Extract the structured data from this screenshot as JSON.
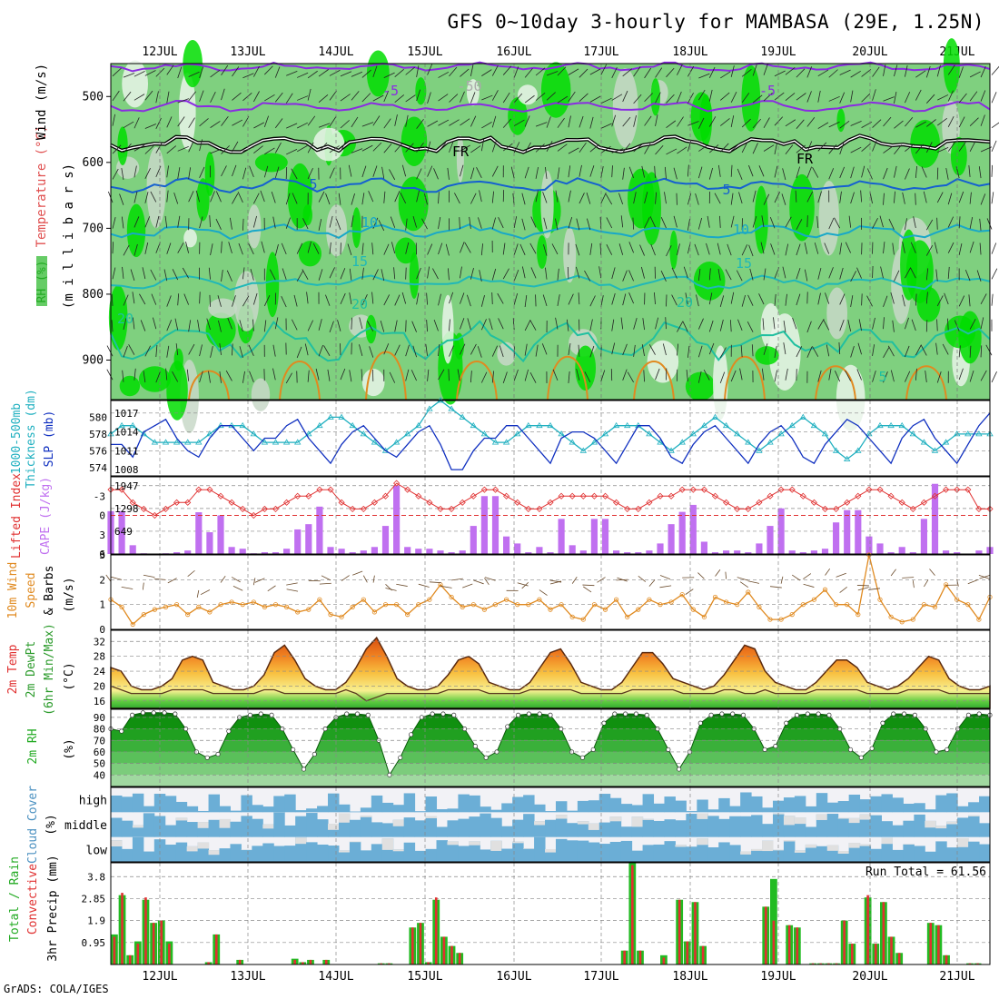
{
  "title": "GFS 0~10day 3-hourly for MAMBASA (29E, 1.25N)",
  "credit": "GrADS: COLA/IGES",
  "dates": [
    "12JUL",
    "13JUL",
    "14JUL",
    "15JUL",
    "16JUL",
    "17JUL",
    "18JUL",
    "19JUL",
    "20JUL",
    "21JUL"
  ],
  "colors": {
    "green_dark": "#00dd00",
    "green_mid": "#66cc66",
    "green_light": "#c8d8c8",
    "temp_purple": "#8a2be2",
    "temp_blue": "#1560d0",
    "temp_cyan": "#18a8c8",
    "freeze": "#000000",
    "warm_orange": "#e08a20",
    "slp": "#1030c0",
    "thick": "#20b0c0",
    "li": "#e03030",
    "cape": "#c070f0",
    "wind10": "#e08a20",
    "cloud_blue": "#6baed6",
    "cloud_grey": "#e0e0e0",
    "rain_green": "#22bb22",
    "rain_red": "#e03030"
  },
  "labels": {
    "p1_ylabels": [
      {
        "t": "(m i l l i b a r s)",
        "c": "#000"
      },
      {
        "t": "RH (%)",
        "c": "#22aa22"
      },
      {
        "t": "Temperature (°C)",
        "c": "#e05050"
      },
      {
        "t": "Wind (m/s)",
        "c": "#000"
      }
    ],
    "p2_left": "Thickness (dm)",
    "p2_left2": "1000-500mb",
    "p2_right": "SLP (mb)",
    "p3_left": "Lifted Index",
    "p3_right": "CAPE (J/kg)",
    "p4_a": "10m Wind",
    "p4_b": "Speed",
    "p4_c": "& Barbs",
    "p4_unit": "(m/s)",
    "p5_a": "2m Temp",
    "p5_b": "2m DewPt",
    "p5_c": "(6hr Min/Max)",
    "p5_unit": "(°C)",
    "p6_a": "2m RH",
    "p6_unit": "(%)",
    "p7_a": "Cloud Cover",
    "p7_unit": "(%)",
    "p8_a": "Total / Rain",
    "p8_b": "Convective",
    "p8_unit": "3hr Precip (mm)",
    "run_total": "Run Total = 61.56",
    "contour_labels": [
      "-5",
      "-5",
      "5",
      "5",
      "10",
      "10",
      "15",
      "15",
      "20",
      "20",
      "20",
      "FR",
      "FR",
      "5",
      "-50"
    ]
  },
  "chart_data": [
    {
      "type": "heatmap",
      "panel": "vertical profile",
      "ylabel": "(millibars)",
      "ylim": [
        960,
        450
      ],
      "yticks": [
        500,
        600,
        700,
        800,
        900
      ],
      "overlays": [
        "RH (%) shading",
        "Temperature (°C) contours",
        "Wind (m/s) barbs"
      ],
      "contours": [
        -5,
        -50,
        0,
        5,
        10,
        15,
        20
      ]
    },
    {
      "type": "line",
      "panel": "thickness/slp",
      "left_axis": {
        "label": "1000-500mb Thickness (dm)",
        "ticks": [
          574,
          576,
          578,
          580
        ]
      },
      "right_axis": {
        "label": "SLP (mb)",
        "ticks": [
          1008,
          1011,
          1014,
          1017
        ]
      },
      "series": [
        {
          "name": "SLP (mb)",
          "values": [
            1012,
            1012,
            1010,
            1014,
            1015,
            1016,
            1013,
            1011,
            1010,
            1013,
            1015,
            1015,
            1013,
            1011,
            1013,
            1013,
            1015,
            1016,
            1013,
            1011,
            1009,
            1012,
            1014,
            1015,
            1013,
            1011,
            1010,
            1012,
            1014,
            1015,
            1012,
            1008,
            1008,
            1011,
            1013,
            1013,
            1015,
            1015,
            1013,
            1011,
            1009,
            1013,
            1014,
            1014,
            1013,
            1011,
            1009,
            1012,
            1015,
            1015,
            1013,
            1010,
            1009,
            1012,
            1014,
            1015,
            1013,
            1011,
            1009,
            1012,
            1014,
            1015,
            1013,
            1010,
            1009,
            1012,
            1014,
            1016,
            1015,
            1013,
            1011,
            1009,
            1013,
            1015,
            1016,
            1013,
            1011,
            1009,
            1012,
            1015,
            1017
          ]
        },
        {
          "name": "Thickness (dm)",
          "values": [
            578,
            579,
            579,
            578,
            577,
            577,
            577,
            577,
            577,
            578,
            579,
            579,
            579,
            578,
            577,
            577,
            577,
            577,
            578,
            579,
            580,
            580,
            579,
            578,
            577,
            576,
            577,
            578,
            579,
            581,
            582,
            581,
            580,
            579,
            578,
            577,
            577,
            578,
            579,
            579,
            579,
            578,
            577,
            576,
            577,
            578,
            579,
            579,
            579,
            578,
            577,
            576,
            577,
            578,
            579,
            580,
            579,
            578,
            577,
            576,
            577,
            578,
            579,
            580,
            579,
            578,
            576,
            575,
            576,
            578,
            579,
            579,
            579,
            578,
            577,
            576,
            577,
            578,
            578,
            578,
            578
          ]
        }
      ]
    },
    {
      "type": "bar",
      "panel": "li/cape",
      "left_axis": {
        "label": "Lifted Index",
        "ticks": [
          -3,
          0,
          3,
          6
        ],
        "inverted": true
      },
      "right_axis": {
        "label": "CAPE (J/kg)",
        "ticks": [
          649,
          1298,
          1947
        ]
      },
      "series": [
        {
          "name": "CAPE (J/kg)",
          "values": [
            1220,
            1220,
            250,
            20,
            0,
            20,
            50,
            100,
            1190,
            620,
            1100,
            200,
            150,
            20,
            50,
            50,
            150,
            700,
            850,
            1350,
            200,
            150,
            50,
            100,
            200,
            800,
            1950,
            200,
            150,
            150,
            100,
            50,
            100,
            800,
            1650,
            1650,
            500,
            300,
            50,
            200,
            50,
            1000,
            250,
            100,
            1000,
            1000,
            100,
            50,
            50,
            100,
            300,
            850,
            1200,
            1400,
            350,
            50,
            100,
            100,
            50,
            300,
            800,
            1300,
            100,
            50,
            100,
            150,
            900,
            1250,
            1250,
            500,
            300,
            50,
            200,
            50,
            1000,
            2000,
            100,
            50,
            0,
            100,
            200
          ]
        },
        {
          "name": "Lifted Index",
          "values": [
            -4,
            -4,
            -2,
            -1,
            0,
            -1,
            -2,
            -2,
            -4,
            -4,
            -3,
            -2,
            -1,
            0,
            -1,
            -1,
            -2,
            -3,
            -3,
            -4,
            -4,
            -2,
            -1,
            -1,
            -2,
            -3,
            -5,
            -4,
            -3,
            -2,
            -1,
            -1,
            -2,
            -3,
            -4,
            -4,
            -3,
            -2,
            -1,
            -1,
            -2,
            -3,
            -3,
            -3,
            -3,
            -3,
            -2,
            -1,
            -1,
            -2,
            -3,
            -3,
            -4,
            -4,
            -4,
            -3,
            -2,
            -1,
            -1,
            -2,
            -3,
            -4,
            -4,
            -3,
            -2,
            -1,
            -1,
            -2,
            -3,
            -4,
            -4,
            -3,
            -2,
            -1,
            -2,
            -3,
            -4,
            -4,
            -4,
            -1,
            -1
          ]
        }
      ]
    },
    {
      "type": "line",
      "panel": "10m wind",
      "ylim": [
        0,
        3
      ],
      "yticks": [
        0,
        1,
        2,
        3
      ],
      "series": [
        {
          "name": "Speed",
          "values": [
            1.2,
            0.9,
            0.2,
            0.6,
            0.8,
            0.9,
            1.0,
            0.6,
            0.9,
            0.7,
            1.0,
            1.1,
            1.0,
            1.1,
            0.9,
            1.0,
            0.9,
            0.7,
            0.8,
            1.2,
            0.6,
            0.5,
            0.9,
            1.2,
            0.7,
            1.0,
            1.0,
            0.6,
            1.0,
            1.2,
            1.8,
            1.3,
            0.9,
            1.0,
            0.8,
            1.0,
            1.2,
            1.0,
            1.0,
            1.2,
            0.8,
            1.0,
            0.5,
            0.4,
            1.0,
            0.8,
            1.2,
            0.5,
            0.8,
            1.2,
            1.0,
            1.1,
            1.4,
            0.8,
            0.5,
            1.3,
            1.1,
            1.0,
            1.5,
            0.9,
            0.4,
            0.4,
            0.6,
            1.0,
            1.2,
            1.6,
            1.0,
            1.0,
            0.6,
            3.0,
            1.2,
            0.5,
            0.3,
            0.4,
            1.0,
            0.9,
            1.8,
            1.2,
            1.0,
            0.4,
            1.3
          ]
        }
      ]
    },
    {
      "type": "area",
      "panel": "2m temp",
      "ylim": [
        14,
        35
      ],
      "yticks": [
        16,
        20,
        24,
        28,
        32
      ],
      "series": [
        {
          "name": "2m Temp",
          "values": [
            25,
            24,
            20,
            19,
            19,
            20,
            22,
            27,
            28,
            27,
            21,
            20,
            19,
            19,
            20,
            23,
            29,
            31,
            27,
            22,
            20,
            19,
            19,
            21,
            25,
            30,
            33,
            28,
            22,
            20,
            19,
            19,
            20,
            23,
            27,
            28,
            26,
            21,
            20,
            19,
            19,
            21,
            25,
            29,
            30,
            26,
            21,
            20,
            19,
            19,
            21,
            25,
            29,
            29,
            26,
            22,
            21,
            20,
            19,
            20,
            23,
            27,
            31,
            30,
            24,
            21,
            20,
            19,
            19,
            21,
            24,
            27,
            27,
            25,
            21,
            20,
            19,
            20,
            22,
            25,
            28,
            27,
            22,
            20,
            19,
            19,
            20
          ]
        },
        {
          "name": "2m DewPt",
          "values": [
            20,
            19,
            18,
            18,
            18,
            18,
            19,
            19,
            19,
            19,
            18,
            18,
            18,
            18,
            18,
            19,
            19,
            18,
            18,
            18,
            18,
            18,
            18,
            19,
            18,
            16,
            17,
            18,
            18,
            18,
            18,
            18,
            18,
            19,
            19,
            19,
            19,
            18,
            18,
            18,
            18,
            19,
            19,
            19,
            19,
            19,
            18,
            18,
            18,
            18,
            18,
            19,
            19,
            19,
            19,
            19,
            18,
            18,
            18,
            18,
            19,
            19,
            18,
            18,
            19,
            18,
            18,
            18,
            18,
            19,
            19,
            19,
            19,
            19,
            18,
            18,
            18,
            18,
            19,
            19,
            19,
            19,
            18,
            18,
            18,
            18,
            18
          ]
        }
      ]
    },
    {
      "type": "area",
      "panel": "2m rh",
      "ylim": [
        30,
        97
      ],
      "yticks": [
        40,
        50,
        60,
        70,
        80,
        90
      ],
      "series": [
        {
          "name": "2m RH",
          "values": [
            80,
            78,
            92,
            94,
            94,
            94,
            93,
            80,
            60,
            55,
            58,
            78,
            90,
            92,
            93,
            92,
            80,
            62,
            45,
            58,
            80,
            90,
            93,
            93,
            92,
            70,
            40,
            55,
            75,
            90,
            93,
            93,
            92,
            80,
            65,
            55,
            60,
            82,
            92,
            93,
            93,
            92,
            80,
            60,
            55,
            62,
            85,
            93,
            93,
            93,
            92,
            80,
            62,
            45,
            60,
            85,
            92,
            93,
            93,
            92,
            80,
            62,
            65,
            85,
            92,
            93,
            93,
            92,
            80,
            62,
            55,
            63,
            85,
            93,
            93,
            92,
            80,
            60,
            62,
            80,
            92,
            93,
            92
          ]
        }
      ]
    },
    {
      "type": "heatmap",
      "panel": "cloud cover",
      "rows": [
        "high",
        "middle",
        "low"
      ]
    },
    {
      "type": "bar",
      "panel": "precip",
      "yticks": [
        0.95,
        1.9,
        2.85,
        3.8
      ],
      "ylim": [
        0,
        4.4
      ],
      "series": [
        {
          "name": "Total",
          "values": [
            1.3,
            3.0,
            0.4,
            1.0,
            2.8,
            1.8,
            1.9,
            1.0,
            0,
            0,
            0,
            0,
            0.1,
            1.3,
            0,
            0,
            0.2,
            0,
            0,
            0,
            0,
            0,
            0,
            0.25,
            0.1,
            0.2,
            0,
            0.2,
            0,
            0,
            0,
            0,
            0,
            0,
            0.05,
            0.05,
            0,
            0,
            1.6,
            1.8,
            0.1,
            2.8,
            1.2,
            0.8,
            0.5,
            0,
            0,
            0,
            0,
            0,
            0,
            0,
            0,
            0,
            0,
            0,
            0,
            0,
            0,
            0,
            0,
            0,
            0,
            0,
            0,
            0.6,
            4.4,
            0.6,
            0,
            0,
            0.4,
            0,
            2.8,
            1.0,
            2.7,
            0.8,
            0,
            0,
            0,
            0,
            0,
            0,
            0,
            2.5,
            3.7,
            0,
            1.7,
            1.6,
            0,
            0.05,
            0.05,
            0.05,
            0.05,
            1.9,
            0.9,
            0,
            2.9,
            0.9,
            2.7,
            1.2,
            0.5,
            0,
            0,
            0,
            1.8,
            1.7,
            0.4,
            0,
            0,
            0.05,
            0.05,
            0
          ]
        },
        {
          "name": "Convective",
          "values": [
            1.2,
            3.1,
            0.4,
            0.9,
            2.9,
            1.8,
            1.9,
            0.9,
            0,
            0,
            0,
            0,
            0.1,
            1.3,
            0,
            0,
            0.2,
            0,
            0,
            0,
            0,
            0,
            0,
            0.2,
            0.1,
            0.2,
            0,
            0.2,
            0,
            0,
            0,
            0,
            0,
            0,
            0.05,
            0.05,
            0,
            0,
            1.6,
            1.8,
            0.1,
            2.9,
            1.2,
            0.8,
            0.5,
            0,
            0,
            0,
            0,
            0,
            0,
            0,
            0,
            0,
            0,
            0,
            0,
            0,
            0,
            0,
            0,
            0,
            0,
            0,
            0,
            0.6,
            4.3,
            0.6,
            0,
            0,
            0.3,
            0,
            2.8,
            1.0,
            2.7,
            0.8,
            0,
            0,
            0,
            0,
            0,
            0,
            0,
            2.5,
            1.9,
            0,
            1.7,
            1.6,
            0,
            0.05,
            0.05,
            0.05,
            0.05,
            1.9,
            0.9,
            0,
            3.0,
            0.9,
            2.7,
            1.2,
            0.5,
            0,
            0,
            0,
            1.8,
            1.7,
            0.4,
            0,
            0,
            0.05,
            0.05,
            0
          ]
        }
      ]
    }
  ]
}
